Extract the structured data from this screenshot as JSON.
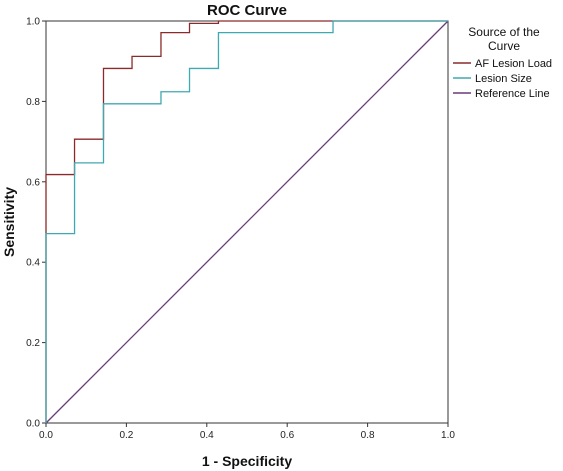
{
  "chart_data": {
    "type": "line",
    "title": "ROC Curve",
    "xlabel": "1 - Specificity",
    "ylabel": "Sensitivity",
    "xlim": [
      0,
      1
    ],
    "ylim": [
      0,
      1
    ],
    "xticks": [
      "0.0",
      "0.2",
      "0.4",
      "0.6",
      "0.8",
      "1.0"
    ],
    "yticks": [
      "0.0",
      "0.2",
      "0.4",
      "0.6",
      "0.8",
      "1.0"
    ],
    "grid": false,
    "legend": {
      "title_line1": "Source of the",
      "title_line2": "Curve",
      "placement": "right"
    },
    "series": [
      {
        "name": "AF Lesion Load",
        "color": "#8b2a2a",
        "step": true,
        "x": [
          0,
          0,
          0.071,
          0.071,
          0.143,
          0.143,
          0.214,
          0.214,
          0.286,
          0.286,
          0.357,
          0.357,
          0.429,
          0.429,
          1.0
        ],
        "y": [
          0,
          0.618,
          0.618,
          0.706,
          0.706,
          0.882,
          0.882,
          0.912,
          0.912,
          0.971,
          0.971,
          0.994,
          0.994,
          1.0,
          1.0
        ]
      },
      {
        "name": "Lesion Size",
        "color": "#3fa9b0",
        "step": true,
        "x": [
          0,
          0,
          0.071,
          0.071,
          0.143,
          0.143,
          0.286,
          0.286,
          0.357,
          0.357,
          0.429,
          0.429,
          0.714,
          0.714,
          1.0
        ],
        "y": [
          0,
          0.471,
          0.471,
          0.647,
          0.647,
          0.794,
          0.794,
          0.824,
          0.824,
          0.882,
          0.882,
          0.971,
          0.971,
          1.0,
          1.0
        ]
      },
      {
        "name": "Reference Line",
        "color": "#6a3a7a",
        "step": false,
        "x": [
          0,
          1
        ],
        "y": [
          0,
          1
        ]
      }
    ]
  }
}
